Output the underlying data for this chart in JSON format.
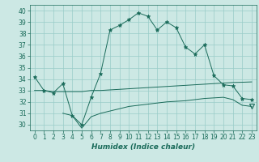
{
  "xlabel": "Humidex (Indice chaleur)",
  "bg_color": "#cce8e4",
  "grid_color": "#99ccc8",
  "line_color": "#1a6b5a",
  "xlim": [
    -0.5,
    23.5
  ],
  "ylim": [
    29.5,
    40.5
  ],
  "yticks": [
    30,
    31,
    32,
    33,
    34,
    35,
    36,
    37,
    38,
    39,
    40
  ],
  "xticks": [
    0,
    1,
    2,
    3,
    4,
    5,
    6,
    7,
    8,
    9,
    10,
    11,
    12,
    13,
    14,
    15,
    16,
    17,
    18,
    19,
    20,
    21,
    22,
    23
  ],
  "series1_x": [
    0,
    1,
    2,
    3,
    4,
    5,
    6,
    7,
    8,
    9,
    10,
    11,
    12,
    13,
    14,
    15,
    16,
    17,
    18,
    19,
    20,
    21,
    22,
    23
  ],
  "series1_y": [
    34.2,
    33.0,
    32.8,
    33.6,
    30.8,
    30.0,
    32.4,
    34.5,
    38.3,
    38.7,
    39.2,
    39.8,
    39.5,
    38.3,
    39.0,
    38.5,
    36.8,
    36.2,
    37.0,
    34.3,
    33.5,
    33.4,
    32.3,
    32.2
  ],
  "series2_x": [
    0,
    1,
    2,
    3,
    4,
    5,
    6,
    7,
    8,
    9,
    10,
    11,
    12,
    13,
    14,
    15,
    16,
    17,
    18,
    19,
    20,
    21,
    22,
    23
  ],
  "series2_y": [
    33.0,
    33.0,
    32.9,
    32.9,
    32.9,
    32.9,
    33.0,
    33.0,
    33.05,
    33.1,
    33.15,
    33.2,
    33.25,
    33.3,
    33.35,
    33.4,
    33.45,
    33.5,
    33.55,
    33.6,
    33.65,
    33.7,
    33.72,
    33.75
  ],
  "series3_x": [
    3,
    4,
    5,
    6,
    7,
    8,
    9,
    10,
    11,
    12,
    13,
    14,
    15,
    16,
    17,
    18,
    19,
    20,
    21,
    22,
    23
  ],
  "series3_y": [
    31.0,
    30.8,
    29.7,
    30.7,
    31.0,
    31.2,
    31.4,
    31.6,
    31.7,
    31.8,
    31.9,
    32.0,
    32.05,
    32.1,
    32.2,
    32.3,
    32.35,
    32.4,
    32.2,
    31.7,
    31.6
  ],
  "marker_size": 3.5,
  "line_width": 0.7,
  "tick_fontsize": 5.5,
  "xlabel_fontsize": 6.5
}
